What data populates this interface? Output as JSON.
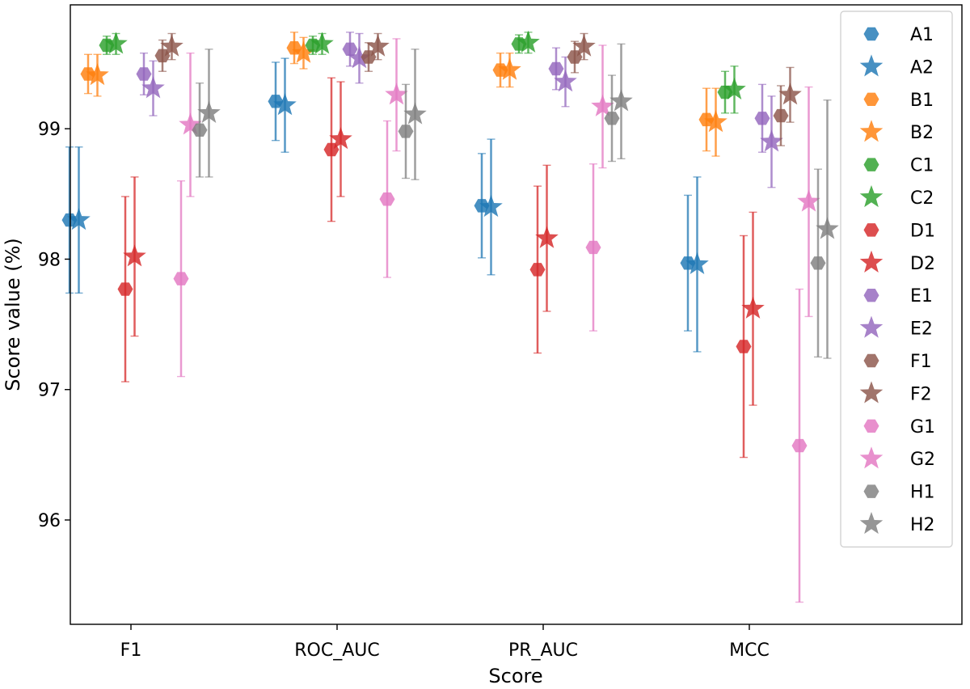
{
  "chart_data": {
    "type": "scatter",
    "title": "",
    "xlabel": "Score",
    "ylabel": "Score value (%)",
    "categories": [
      "F1",
      "ROC_AUC",
      "PR_AUC",
      "MCC"
    ],
    "ylim": [
      95.2,
      99.95
    ],
    "yticks": [
      96,
      97,
      98,
      99
    ],
    "ytick_labels": [
      "96",
      "97",
      "98",
      "99"
    ],
    "legend_position": "top-right",
    "series": [
      {
        "name": "A1",
        "color": "#1f77b4",
        "marker": "hexagon",
        "values": [
          98.3,
          99.21,
          98.41,
          97.97
        ],
        "errors": [
          0.56,
          0.3,
          0.4,
          0.52
        ]
      },
      {
        "name": "A2",
        "color": "#1f77b4",
        "marker": "star",
        "values": [
          98.3,
          99.18,
          98.4,
          97.96
        ],
        "errors": [
          0.56,
          0.36,
          0.52,
          0.67
        ]
      },
      {
        "name": "B1",
        "color": "#ff7f0e",
        "marker": "hexagon",
        "values": [
          99.42,
          99.62,
          99.45,
          99.07
        ],
        "errors": [
          0.15,
          0.12,
          0.13,
          0.24
        ]
      },
      {
        "name": "B2",
        "color": "#ff7f0e",
        "marker": "star",
        "values": [
          99.41,
          99.58,
          99.45,
          99.05
        ],
        "errors": [
          0.16,
          0.12,
          0.13,
          0.26
        ]
      },
      {
        "name": "C1",
        "color": "#2ca02c",
        "marker": "hexagon",
        "values": [
          99.64,
          99.64,
          99.65,
          99.28
        ],
        "errors": [
          0.07,
          0.07,
          0.07,
          0.16
        ]
      },
      {
        "name": "C2",
        "color": "#2ca02c",
        "marker": "star",
        "values": [
          99.65,
          99.65,
          99.66,
          99.3
        ],
        "errors": [
          0.08,
          0.08,
          0.08,
          0.18
        ]
      },
      {
        "name": "D1",
        "color": "#d62728",
        "marker": "hexagon",
        "values": [
          97.77,
          98.84,
          97.92,
          97.33
        ],
        "errors": [
          0.71,
          0.55,
          0.64,
          0.85
        ]
      },
      {
        "name": "D2",
        "color": "#d62728",
        "marker": "star",
        "values": [
          98.02,
          98.92,
          98.16,
          97.62
        ],
        "errors": [
          0.61,
          0.44,
          0.56,
          0.74
        ]
      },
      {
        "name": "E1",
        "color": "#9467bd",
        "marker": "hexagon",
        "values": [
          99.42,
          99.61,
          99.46,
          99.08
        ],
        "errors": [
          0.16,
          0.13,
          0.16,
          0.26
        ]
      },
      {
        "name": "E2",
        "color": "#9467bd",
        "marker": "star",
        "values": [
          99.31,
          99.54,
          99.36,
          98.9
        ],
        "errors": [
          0.21,
          0.19,
          0.19,
          0.35
        ]
      },
      {
        "name": "F1",
        "color": "#8c564b",
        "marker": "hexagon",
        "values": [
          99.56,
          99.55,
          99.55,
          99.1
        ],
        "errors": [
          0.12,
          0.11,
          0.12,
          0.23
        ]
      },
      {
        "name": "F2",
        "color": "#8c564b",
        "marker": "star",
        "values": [
          99.63,
          99.63,
          99.63,
          99.26
        ],
        "errors": [
          0.1,
          0.1,
          0.1,
          0.21
        ]
      },
      {
        "name": "G1",
        "color": "#e377c2",
        "marker": "hexagon",
        "values": [
          97.85,
          98.46,
          98.09,
          96.57
        ],
        "errors": [
          0.75,
          0.6,
          0.64,
          1.2
        ]
      },
      {
        "name": "G2",
        "color": "#e377c2",
        "marker": "star",
        "values": [
          99.03,
          99.26,
          99.17,
          98.44
        ],
        "errors": [
          0.55,
          0.43,
          0.47,
          0.88
        ]
      },
      {
        "name": "H1",
        "color": "#7f7f7f",
        "marker": "hexagon",
        "values": [
          98.99,
          98.98,
          99.08,
          97.97
        ],
        "errors": [
          0.36,
          0.36,
          0.33,
          0.72
        ]
      },
      {
        "name": "H2",
        "color": "#7f7f7f",
        "marker": "star",
        "values": [
          99.12,
          99.11,
          99.21,
          98.23
        ],
        "errors": [
          0.49,
          0.5,
          0.44,
          0.99
        ]
      }
    ]
  }
}
